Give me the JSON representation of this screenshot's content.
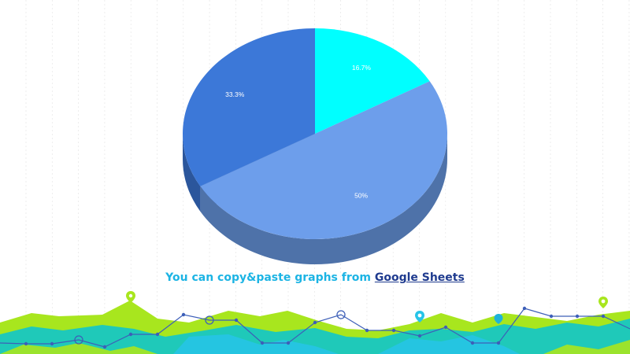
{
  "caption": {
    "text": "You can copy&paste graphs from ",
    "link_label": "Google Sheets"
  },
  "chart_data": {
    "type": "pie",
    "style": "3d",
    "title": "",
    "legend": "none",
    "slices": [
      {
        "label": "16.7%",
        "value": 16.7,
        "color": "#00ffff"
      },
      {
        "label": "50%",
        "value": 50,
        "color": "#6d9eeb"
      },
      {
        "label": "33.3%",
        "value": 33.3,
        "color": "#3c78d8"
      }
    ]
  },
  "colors": {
    "caption": "#1cb4e4",
    "link": "#1f3b8f",
    "wave_lime": "#a8e61e",
    "wave_teal": "#1fc9b9",
    "wave_cyan": "#27c4e8",
    "line": "#3d5fb8"
  }
}
